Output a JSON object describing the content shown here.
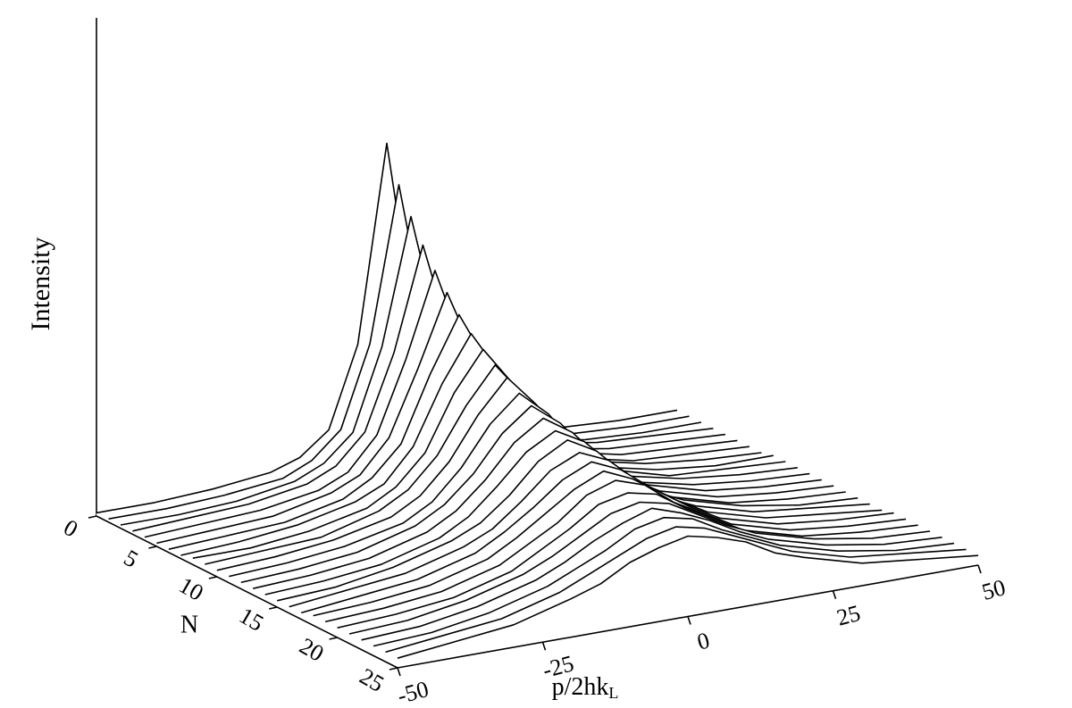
{
  "chart_data": {
    "type": "waterfall",
    "z_label": "Intensity",
    "y_label": "N",
    "x_label": "p/2hk",
    "x_label_sub": "L",
    "x": [
      -50,
      -40,
      -30,
      -20,
      -15,
      -10,
      -5,
      0,
      5,
      10,
      15,
      20,
      30,
      40,
      50
    ],
    "xlim": [
      -50,
      50
    ],
    "xticks": [
      -50,
      -25,
      0,
      25,
      50
    ],
    "ylim": [
      0,
      25
    ],
    "yticks": [
      0,
      5,
      10,
      15,
      20,
      25
    ],
    "zlim": [
      0,
      15.5
    ],
    "color": "#000000",
    "series": [
      {
        "n": 0,
        "values": [
          0.1,
          0.1,
          0.2,
          0.4,
          0.7,
          1.4,
          3.9,
          10,
          3.9,
          1.4,
          0.7,
          0.4,
          0.2,
          0.1,
          0.1
        ]
      },
      {
        "n": 1,
        "values": [
          0.1,
          0.1,
          0.2,
          0.4,
          0.8,
          1.6,
          4.1,
          8.9,
          4.1,
          1.6,
          0.8,
          0.4,
          0.2,
          0.1,
          0.1
        ]
      },
      {
        "n": 2,
        "values": [
          0.1,
          0.1,
          0.2,
          0.5,
          0.9,
          1.7,
          4.2,
          8.1,
          4.2,
          1.7,
          0.9,
          0.5,
          0.2,
          0.1,
          0.1
        ]
      },
      {
        "n": 3,
        "values": [
          0.1,
          0.2,
          0.3,
          0.6,
          1.0,
          1.9,
          4.2,
          7.4,
          4.2,
          1.9,
          1.0,
          0.6,
          0.3,
          0.2,
          0.1
        ]
      },
      {
        "n": 4,
        "values": [
          0.1,
          0.2,
          0.3,
          0.6,
          1.0,
          2.0,
          4.2,
          6.8,
          4.2,
          2.0,
          1.0,
          0.6,
          0.3,
          0.2,
          0.1
        ]
      },
      {
        "n": 5,
        "values": [
          0.1,
          0.2,
          0.3,
          0.7,
          1.1,
          2.1,
          4.1,
          6.3,
          4.1,
          2.1,
          1.1,
          0.7,
          0.3,
          0.2,
          0.1
        ]
      },
      {
        "n": 6,
        "values": [
          0.1,
          0.2,
          0.3,
          0.7,
          1.2,
          2.1,
          4.1,
          5.8,
          4.1,
          2.1,
          1.2,
          0.7,
          0.3,
          0.2,
          0.1
        ]
      },
      {
        "n": 7,
        "values": [
          0.1,
          0.2,
          0.4,
          0.8,
          1.2,
          2.2,
          4.0,
          5.4,
          4.0,
          2.2,
          1.2,
          0.8,
          0.4,
          0.2,
          0.1
        ]
      },
      {
        "n": 8,
        "values": [
          0.2,
          0.2,
          0.4,
          0.8,
          1.3,
          2.2,
          3.9,
          5.1,
          3.9,
          2.2,
          1.3,
          0.8,
          0.4,
          0.2,
          0.2
        ]
      },
      {
        "n": 9,
        "values": [
          0.2,
          0.3,
          0.4,
          0.9,
          1.4,
          2.3,
          3.7,
          4.8,
          3.7,
          2.3,
          1.4,
          0.9,
          0.4,
          0.3,
          0.2
        ]
      },
      {
        "n": 10,
        "values": [
          0.2,
          0.3,
          0.5,
          0.9,
          1.4,
          2.3,
          3.6,
          4.6,
          3.6,
          2.3,
          1.4,
          0.9,
          0.5,
          0.3,
          0.2
        ]
      },
      {
        "n": 11,
        "values": [
          0.2,
          0.3,
          0.5,
          0.9,
          1.4,
          2.3,
          3.5,
          4.3,
          3.5,
          2.3,
          1.4,
          0.9,
          0.5,
          0.3,
          0.2
        ]
      },
      {
        "n": 12,
        "values": [
          0.2,
          0.3,
          0.5,
          1.0,
          1.5,
          2.3,
          3.4,
          4.1,
          3.4,
          2.3,
          1.5,
          1.0,
          0.5,
          0.3,
          0.2
        ]
      },
      {
        "n": 13,
        "values": [
          0.2,
          0.3,
          0.5,
          1.0,
          1.5,
          2.3,
          3.3,
          3.9,
          3.3,
          2.3,
          1.5,
          1.0,
          0.5,
          0.3,
          0.2
        ]
      },
      {
        "n": 14,
        "values": [
          0.2,
          0.3,
          0.5,
          1.0,
          1.5,
          2.3,
          3.2,
          3.7,
          3.2,
          2.3,
          1.5,
          1.0,
          0.5,
          0.3,
          0.2
        ]
      },
      {
        "n": 15,
        "values": [
          0.2,
          0.3,
          0.6,
          1.1,
          1.5,
          2.2,
          3.1,
          3.6,
          3.1,
          2.2,
          1.5,
          1.1,
          0.6,
          0.3,
          0.2
        ]
      },
      {
        "n": 16,
        "values": [
          0.2,
          0.4,
          0.6,
          1.1,
          1.5,
          2.2,
          3.0,
          3.4,
          3.0,
          2.2,
          1.5,
          1.1,
          0.6,
          0.4,
          0.2
        ]
      },
      {
        "n": 17,
        "values": [
          0.2,
          0.4,
          0.6,
          1.1,
          1.6,
          2.2,
          2.9,
          3.3,
          2.9,
          2.2,
          1.6,
          1.1,
          0.6,
          0.4,
          0.2
        ]
      },
      {
        "n": 18,
        "values": [
          0.3,
          0.4,
          0.6,
          1.1,
          1.6,
          2.2,
          2.8,
          3.2,
          2.8,
          2.2,
          1.6,
          1.1,
          0.6,
          0.4,
          0.3
        ]
      },
      {
        "n": 19,
        "values": [
          0.3,
          0.4,
          0.6,
          1.1,
          1.6,
          2.1,
          2.8,
          3.1,
          2.8,
          2.1,
          1.6,
          1.1,
          0.6,
          0.4,
          0.3
        ]
      },
      {
        "n": 20,
        "values": [
          0.3,
          0.4,
          0.6,
          1.1,
          1.6,
          2.1,
          2.7,
          2.9,
          2.7,
          2.1,
          1.6,
          1.1,
          0.6,
          0.4,
          0.3
        ]
      },
      {
        "n": 21,
        "values": [
          0.3,
          0.4,
          0.7,
          1.2,
          1.6,
          2.1,
          2.6,
          2.8,
          2.6,
          2.1,
          1.6,
          1.2,
          0.7,
          0.4,
          0.3
        ]
      },
      {
        "n": 22,
        "values": [
          0.3,
          0.4,
          0.7,
          1.2,
          1.6,
          2.1,
          2.5,
          2.8,
          2.5,
          2.1,
          1.6,
          1.2,
          0.7,
          0.4,
          0.3
        ]
      },
      {
        "n": 23,
        "values": [
          0.3,
          0.4,
          0.7,
          1.2,
          1.6,
          2.0,
          2.5,
          2.7,
          2.5,
          2.0,
          1.6,
          1.2,
          0.7,
          0.4,
          0.3
        ]
      },
      {
        "n": 24,
        "values": [
          0.3,
          0.5,
          0.7,
          1.2,
          1.6,
          2.0,
          2.4,
          2.6,
          2.4,
          2.0,
          1.6,
          1.2,
          0.7,
          0.5,
          0.3
        ]
      },
      {
        "n": 25,
        "values": [
          0.3,
          0.5,
          0.7,
          1.2,
          1.5,
          2.0,
          2.3,
          2.5,
          2.3,
          2.0,
          1.5,
          1.2,
          0.7,
          0.5,
          0.3
        ]
      }
    ]
  }
}
